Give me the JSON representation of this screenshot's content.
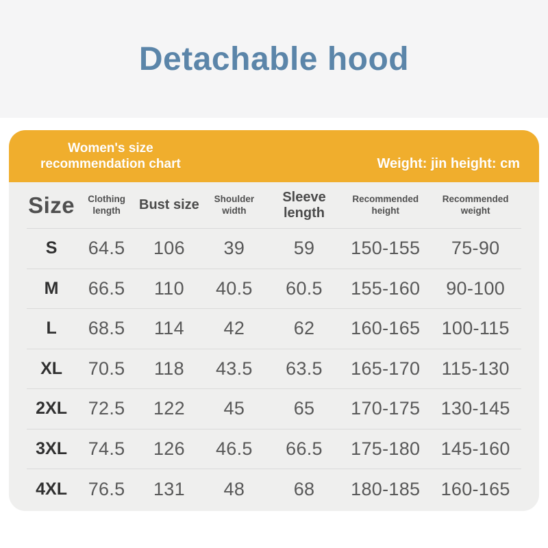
{
  "banner": {
    "title": "Detachable hood"
  },
  "size_chart": {
    "band": {
      "title_line1": "Women's size",
      "title_line2": "recommendation chart",
      "units_note": "Weight: jin height: cm"
    }
  },
  "colors": {
    "banner_background": "#f5f5f6",
    "title_blue": "#5b85a9",
    "band_yellow": "#f0ae2d",
    "card_gray": "#efefee",
    "band_text": "#ffffff"
  },
  "chart_data": {
    "type": "table",
    "title": "Women's size recommendation chart",
    "units": "Weight: jin height: cm",
    "columns": [
      "Size",
      "Clothing length",
      "Bust size",
      "Shoulder width",
      "Sleeve length",
      "Recommended height",
      "Recommended weight"
    ],
    "rows": [
      [
        "S",
        "64.5",
        "106",
        "39",
        "59",
        "150-155",
        "75-90"
      ],
      [
        "M",
        "66.5",
        "110",
        "40.5",
        "60.5",
        "155-160",
        "90-100"
      ],
      [
        "L",
        "68.5",
        "114",
        "42",
        "62",
        "160-165",
        "100-115"
      ],
      [
        "XL",
        "70.5",
        "118",
        "43.5",
        "63.5",
        "165-170",
        "115-130"
      ],
      [
        "2XL",
        "72.5",
        "122",
        "45",
        "65",
        "170-175",
        "130-145"
      ],
      [
        "3XL",
        "74.5",
        "126",
        "46.5",
        "66.5",
        "175-180",
        "145-160"
      ],
      [
        "4XL",
        "76.5",
        "131",
        "48",
        "68",
        "180-185",
        "160-165"
      ]
    ]
  }
}
